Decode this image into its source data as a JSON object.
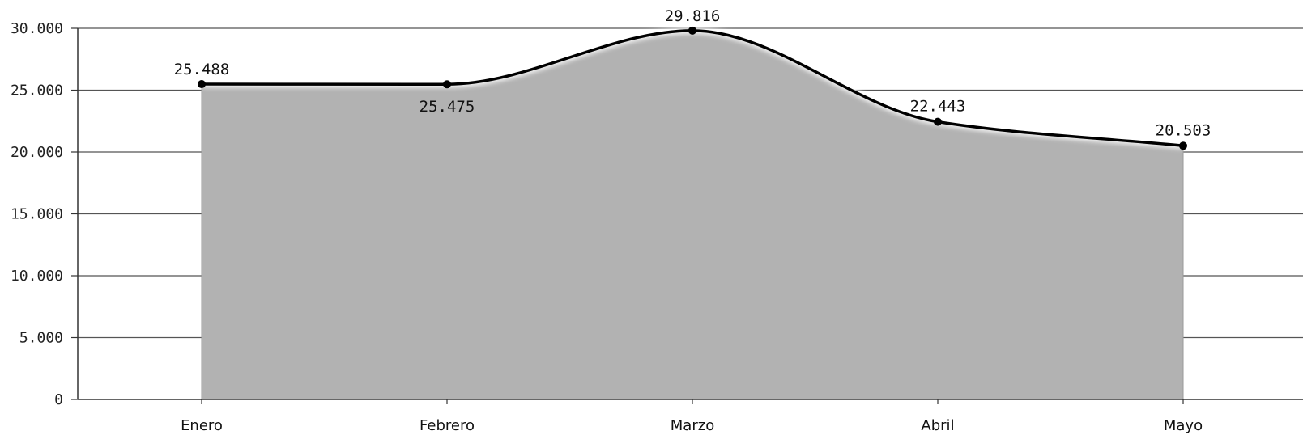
{
  "chart_data": {
    "type": "area",
    "title": "",
    "xlabel": "",
    "ylabel": "",
    "categories": [
      "Enero",
      "Febrero",
      "Marzo",
      "Abril",
      "Mayo"
    ],
    "series": [
      {
        "values": [
          25488,
          25475,
          29816,
          22443,
          20503
        ],
        "data_labels": [
          "25.488",
          "25.475",
          "29.816",
          "22.443",
          "20.503"
        ]
      }
    ],
    "ylim": [
      0,
      30000
    ],
    "yticks": [
      0,
      5000,
      10000,
      15000,
      20000,
      25000,
      30000
    ],
    "ytick_labels": [
      "0",
      "5.000",
      "10.000",
      "15.000",
      "20.000",
      "25.000",
      "30.000"
    ],
    "grid": true,
    "legend": "none",
    "colors": {
      "area_fill": "#b2b2b2",
      "line": "#000000",
      "grid": "#555555",
      "axis": "#333333"
    }
  }
}
